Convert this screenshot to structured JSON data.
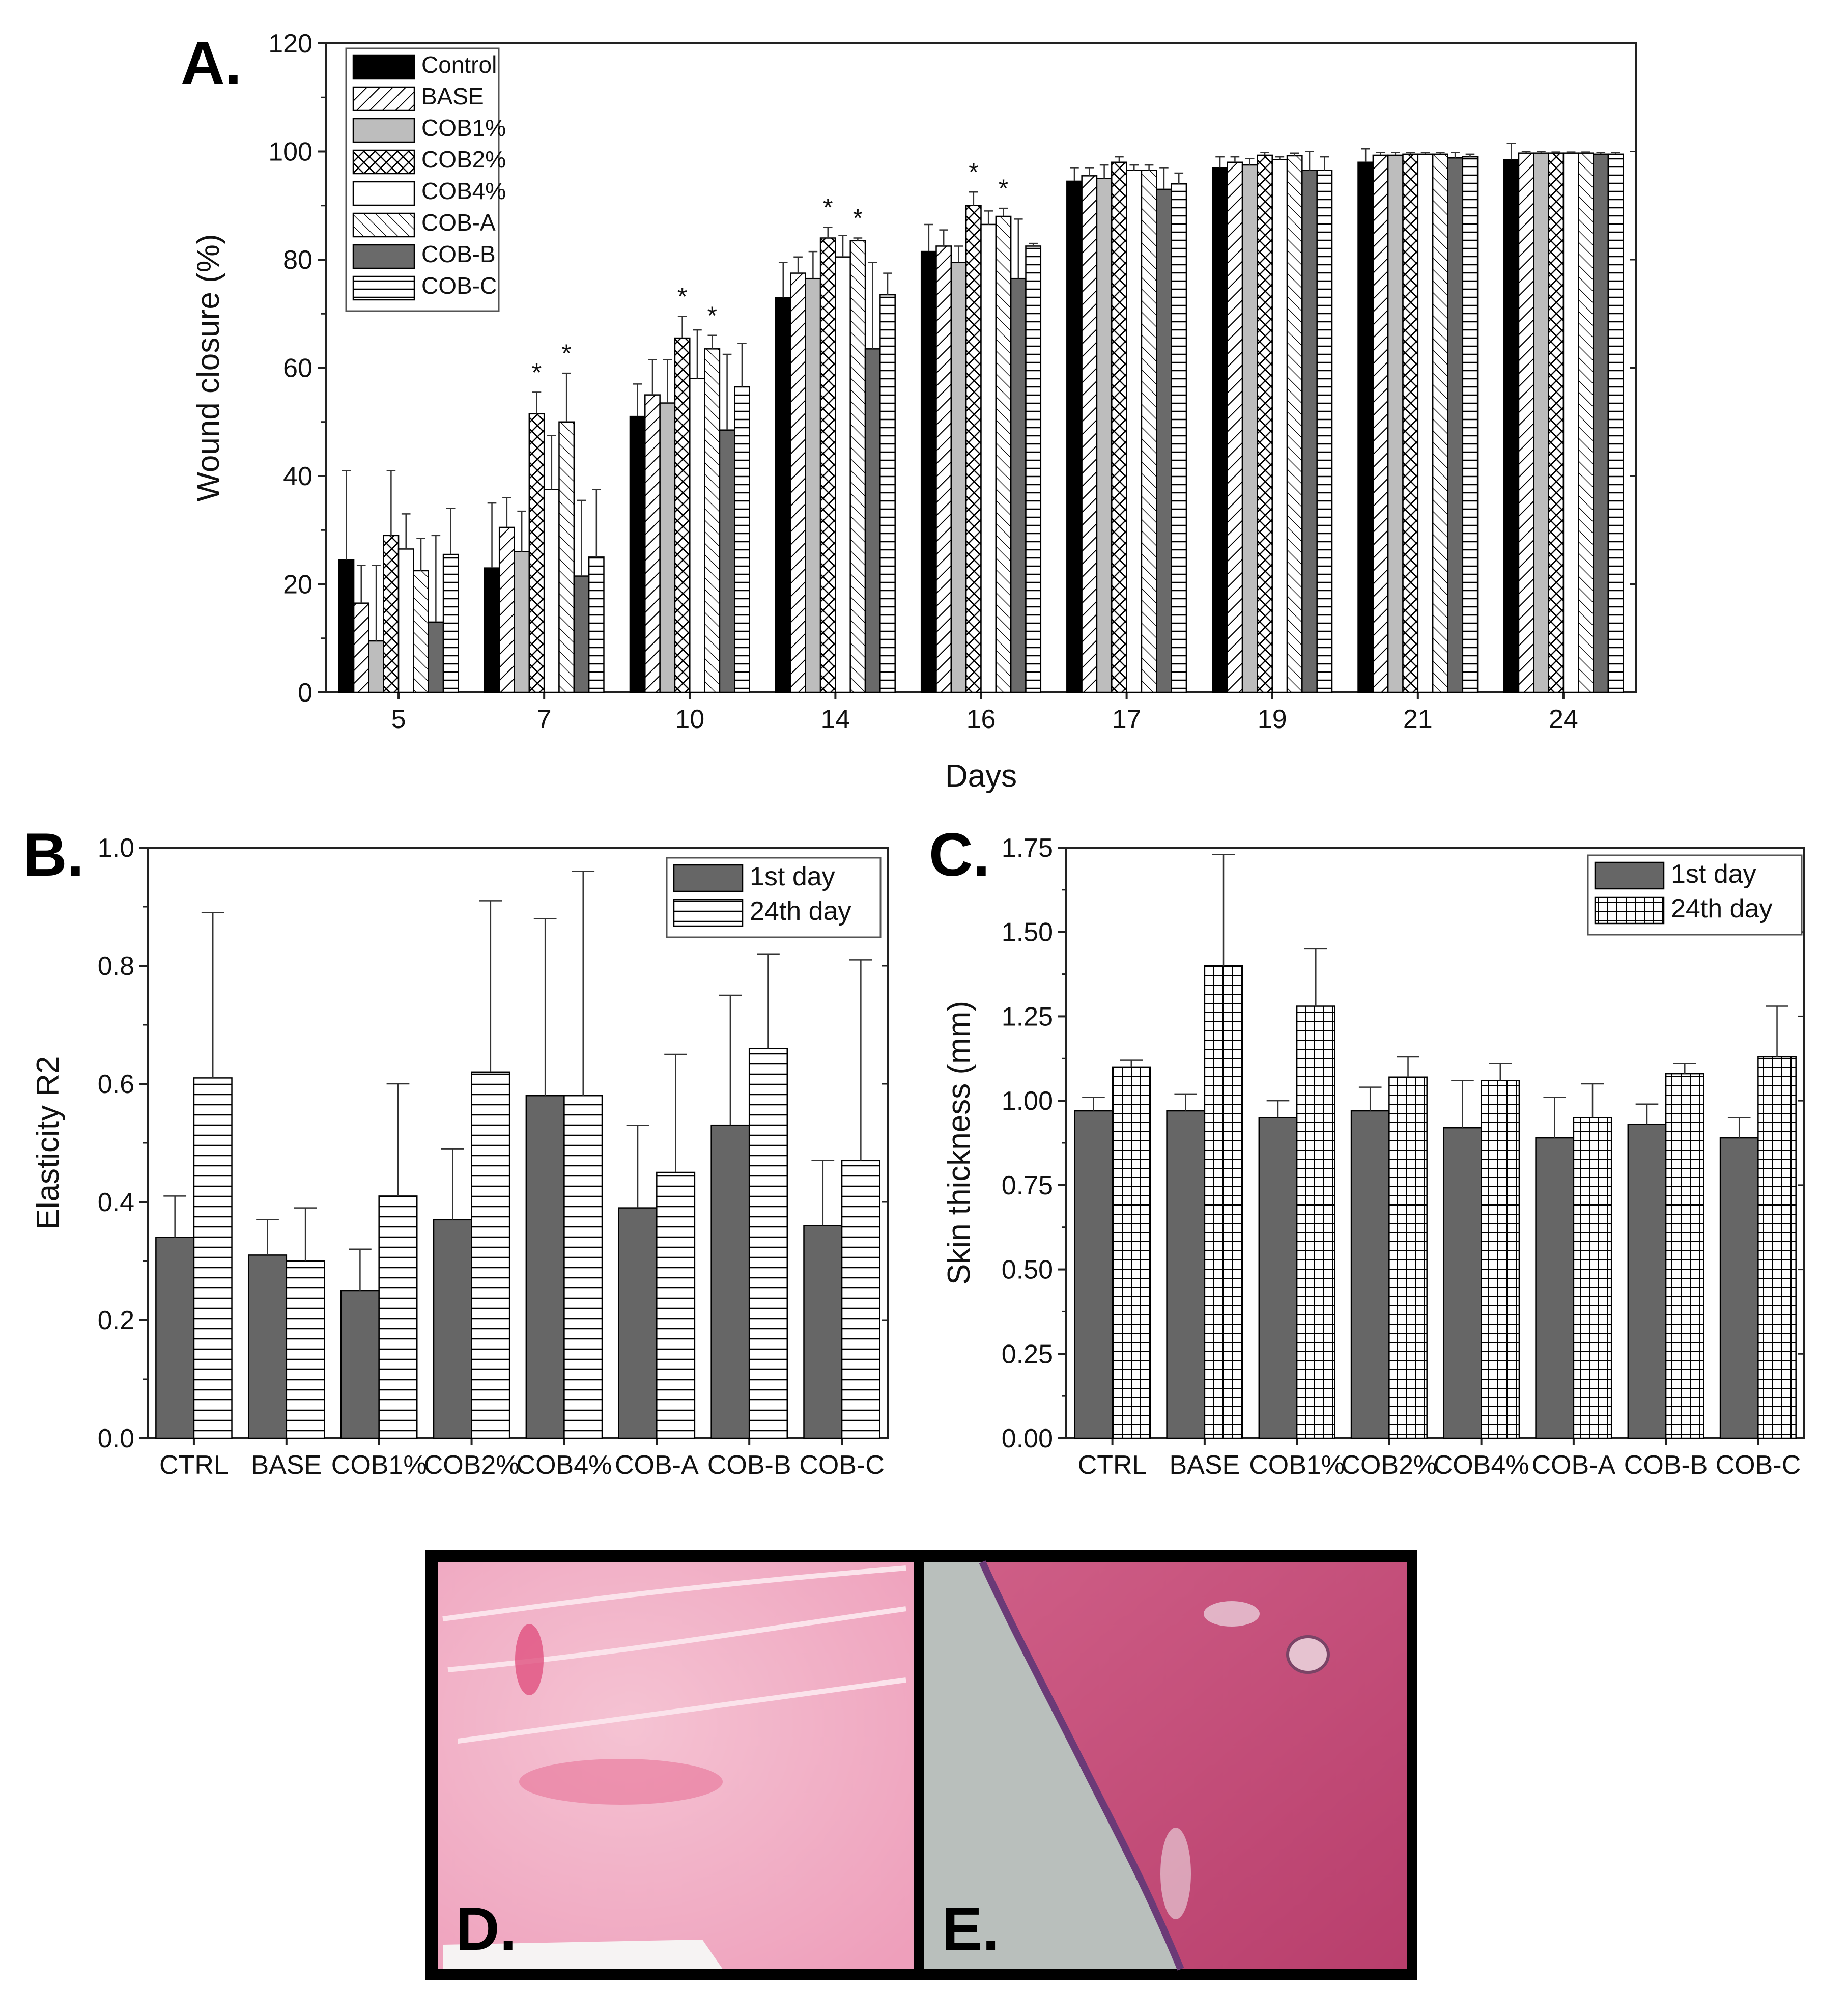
{
  "panels": {
    "a": "A.",
    "b": "B.",
    "c": "C.",
    "d": "D.",
    "e": "E."
  },
  "chart_data": [
    {
      "type": "bar",
      "title": "",
      "xlabel": "Days",
      "ylabel": "Wound closure (%)",
      "ylim": [
        0,
        120
      ],
      "yticks": [
        0,
        20,
        40,
        60,
        80,
        100,
        120
      ],
      "categories": [
        "5",
        "7",
        "10",
        "14",
        "16",
        "17",
        "19",
        "21",
        "24"
      ],
      "legend_position": "top-left",
      "series": [
        {
          "name": "Control",
          "values": [
            24.5,
            23,
            51,
            73,
            81.5,
            94.5,
            97,
            98,
            98.5
          ],
          "errors": [
            16.5,
            12,
            6,
            6.5,
            5,
            2.5,
            2,
            2.5,
            3
          ]
        },
        {
          "name": "BASE",
          "values": [
            16.5,
            30.5,
            55,
            77.5,
            82.5,
            95.5,
            98,
            99.3,
            99.7
          ],
          "errors": [
            7,
            5.5,
            6.5,
            3,
            3,
            1.5,
            1,
            0.5,
            0.3
          ]
        },
        {
          "name": "COB1%",
          "values": [
            9.5,
            26,
            53.5,
            76.5,
            79.5,
            95,
            97.5,
            99.3,
            99.7
          ],
          "errors": [
            14,
            7.5,
            8,
            5,
            3,
            2.5,
            1.2,
            0.5,
            0.3
          ]
        },
        {
          "name": "COB2%",
          "values": [
            29,
            51.5,
            65.5,
            84,
            90,
            98,
            99.3,
            99.5,
            99.7
          ],
          "errors": [
            12,
            4,
            4,
            2,
            2.5,
            1,
            0.5,
            0.3,
            0.2
          ]
        },
        {
          "name": "COB4%",
          "values": [
            26.5,
            37.5,
            58,
            80.5,
            86.5,
            96.5,
            98.5,
            99.5,
            99.7
          ],
          "errors": [
            6.5,
            10,
            9,
            4,
            2.5,
            1,
            0.5,
            0.3,
            0.2
          ]
        },
        {
          "name": "COB-A",
          "values": [
            22.5,
            50,
            63.5,
            83.5,
            88,
            96.5,
            99.2,
            99.5,
            99.7
          ],
          "errors": [
            6,
            9,
            2.5,
            0.5,
            1.5,
            1,
            0.5,
            0.3,
            0.2
          ]
        },
        {
          "name": "COB-B",
          "values": [
            13,
            21.5,
            48.5,
            63.5,
            76.5,
            93,
            96.5,
            98.8,
            99.5
          ],
          "errors": [
            16,
            14,
            14,
            16,
            11,
            4,
            3.5,
            1,
            0.3
          ]
        },
        {
          "name": "COB-C",
          "values": [
            25.5,
            25,
            56.5,
            73.5,
            82.5,
            94,
            96.5,
            99,
            99.5
          ],
          "errors": [
            8.5,
            12.5,
            8,
            4,
            0.5,
            2,
            2.5,
            0.5,
            0.3
          ]
        }
      ],
      "significance_marker": "*",
      "significance": [
        {
          "category": "7",
          "series": "COB2%"
        },
        {
          "category": "7",
          "series": "COB-A"
        },
        {
          "category": "10",
          "series": "COB2%"
        },
        {
          "category": "10",
          "series": "COB-A"
        },
        {
          "category": "14",
          "series": "COB2%"
        },
        {
          "category": "14",
          "series": "COB-A"
        },
        {
          "category": "16",
          "series": "COB2%"
        },
        {
          "category": "16",
          "series": "COB-A"
        }
      ]
    },
    {
      "type": "bar",
      "title": "",
      "xlabel": "",
      "ylabel": "Elasticity R2",
      "ylim": [
        0,
        1.0
      ],
      "yticks": [
        "0.0",
        "0.2",
        "0.4",
        "0.6",
        "0.8",
        "1.0"
      ],
      "categories": [
        "CTRL",
        "BASE",
        "COB1%",
        "COB2%",
        "COB4%",
        "COB-A",
        "COB-B",
        "COB-C"
      ],
      "legend_position": "top-right",
      "series": [
        {
          "name": "1st day",
          "values": [
            0.34,
            0.31,
            0.25,
            0.37,
            0.58,
            0.39,
            0.53,
            0.36
          ],
          "errors": [
            0.07,
            0.06,
            0.07,
            0.12,
            0.3,
            0.14,
            0.22,
            0.11
          ]
        },
        {
          "name": "24th day",
          "values": [
            0.61,
            0.3,
            0.41,
            0.62,
            0.58,
            0.45,
            0.66,
            0.47
          ],
          "errors": [
            0.28,
            0.09,
            0.19,
            0.29,
            0.38,
            0.2,
            0.16,
            0.34
          ]
        }
      ]
    },
    {
      "type": "bar",
      "title": "",
      "xlabel": "",
      "ylabel": "Skin thickness (mm)",
      "ylim": [
        0,
        1.75
      ],
      "yticks": [
        "0.00",
        "0.25",
        "0.50",
        "0.75",
        "1.00",
        "1.25",
        "1.50",
        "1.75"
      ],
      "categories": [
        "CTRL",
        "BASE",
        "COB1%",
        "COB2%",
        "COB4%",
        "COB-A",
        "COB-B",
        "COB-C"
      ],
      "legend_position": "top-right",
      "series": [
        {
          "name": "1st day",
          "values": [
            0.97,
            0.97,
            0.95,
            0.97,
            0.92,
            0.89,
            0.93,
            0.89
          ],
          "errors": [
            0.04,
            0.05,
            0.05,
            0.07,
            0.14,
            0.12,
            0.06,
            0.06
          ]
        },
        {
          "name": "24th day",
          "values": [
            1.1,
            1.4,
            1.28,
            1.07,
            1.06,
            0.95,
            1.08,
            1.13
          ],
          "errors": [
            0.02,
            0.33,
            0.17,
            0.06,
            0.05,
            0.1,
            0.03,
            0.15
          ]
        }
      ]
    }
  ],
  "colors": {
    "control": "#000000",
    "cob1": "#bdbdbd",
    "cobB": "#6a6a6a",
    "dark": "#666666",
    "white": "#ffffff",
    "tissueD": "#f1b0c6",
    "tissueE": "#c64d78",
    "glass": "#b7bdbb"
  }
}
